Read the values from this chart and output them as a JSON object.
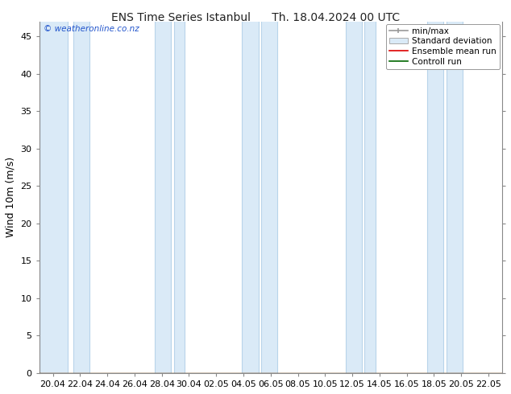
{
  "title_left": "ENS Time Series Istanbul",
  "title_right": "Th. 18.04.2024 00 UTC",
  "ylabel": "Wind 10m (m/s)",
  "watermark": "© weatheronline.co.nz",
  "ylim": [
    0,
    47
  ],
  "yticks": [
    0,
    5,
    10,
    15,
    20,
    25,
    30,
    35,
    40,
    45
  ],
  "x_tick_labels": [
    "20.04",
    "22.04",
    "24.04",
    "26.04",
    "28.04",
    "30.04",
    "02.05",
    "04.05",
    "06.05",
    "08.05",
    "10.05",
    "12.05",
    "14.05",
    "16.05",
    "18.05",
    "20.05",
    "22.05"
  ],
  "bg_color": "#ffffff",
  "plot_bg_color": "#ffffff",
  "shaded_band_color": "#daeaf7",
  "shaded_band_edge_color": "#b8d4ea",
  "legend_labels": [
    "min/max",
    "Standard deviation",
    "Ensemble mean run",
    "Controll run"
  ],
  "legend_line_color": "#999999",
  "legend_std_color": "#daeaf7",
  "legend_mean_color": "#dd0000",
  "legend_ctrl_color": "#006600",
  "font_color": "#222222",
  "title_fontsize": 10,
  "axis_label_fontsize": 9,
  "tick_fontsize": 8,
  "watermark_color": "#2255cc",
  "band_ranges": [
    [
      -0.5,
      0.55
    ],
    [
      0.75,
      1.35
    ],
    [
      3.75,
      4.35
    ],
    [
      4.45,
      4.85
    ],
    [
      6.95,
      7.55
    ],
    [
      7.65,
      8.25
    ],
    [
      10.75,
      11.35
    ],
    [
      11.45,
      11.85
    ],
    [
      13.75,
      14.35
    ],
    [
      14.45,
      15.05
    ]
  ]
}
